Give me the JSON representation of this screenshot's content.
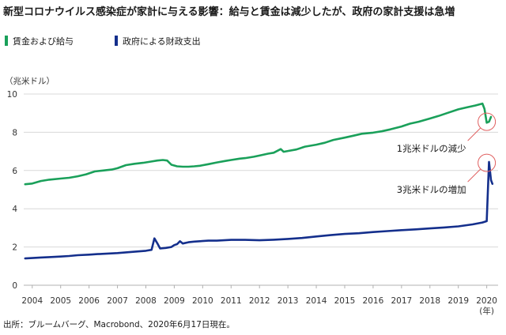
{
  "title": "新型コロナウイルス感染症が家計に与える影響：給与と賃金は減少したが、政府の家計支援は急増",
  "source": "出所：ブルームバーグ、Macrobond、2020年6月17日現在。",
  "chart_data": {
    "type": "line",
    "ylabel": "（兆米ドル）",
    "xlabel_suffix": "(年)",
    "ylim": [
      0,
      10
    ],
    "yticks": [
      0,
      2,
      4,
      6,
      8,
      10
    ],
    "xlim": [
      2003.7,
      2020.4
    ],
    "xticks": [
      "2004",
      "2005",
      "2006",
      "2007",
      "2008",
      "2009",
      "2010",
      "2011",
      "2012",
      "2013",
      "2014",
      "2015",
      "2016",
      "2017",
      "2018",
      "2019",
      "2020"
    ],
    "grid": true,
    "series": [
      {
        "name": "賃金および給与",
        "color": "#1aa05a",
        "x": [
          2003.75,
          2004.0,
          2004.3,
          2004.6,
          2005.0,
          2005.3,
          2005.6,
          2005.9,
          2006.2,
          2006.5,
          2006.8,
          2007.0,
          2007.3,
          2007.6,
          2007.9,
          2008.2,
          2008.4,
          2008.6,
          2008.75,
          2008.9,
          2009.1,
          2009.3,
          2009.5,
          2009.7,
          2009.9,
          2010.2,
          2010.5,
          2010.8,
          2011.0,
          2011.3,
          2011.5,
          2011.8,
          2012.0,
          2012.3,
          2012.5,
          2012.75,
          2012.85,
          2013.0,
          2013.3,
          2013.6,
          2014.0,
          2014.3,
          2014.6,
          2015.0,
          2015.3,
          2015.6,
          2016.0,
          2016.3,
          2016.6,
          2017.0,
          2017.3,
          2017.6,
          2018.0,
          2018.3,
          2018.6,
          2019.0,
          2019.3,
          2019.6,
          2019.85,
          2019.92,
          2020.0,
          2020.08,
          2020.15
        ],
        "values": [
          5.28,
          5.32,
          5.45,
          5.52,
          5.58,
          5.62,
          5.7,
          5.8,
          5.95,
          6.0,
          6.05,
          6.12,
          6.28,
          6.35,
          6.4,
          6.47,
          6.52,
          6.55,
          6.52,
          6.3,
          6.22,
          6.2,
          6.2,
          6.22,
          6.25,
          6.33,
          6.42,
          6.5,
          6.55,
          6.62,
          6.65,
          6.72,
          6.78,
          6.88,
          6.93,
          7.12,
          6.98,
          7.02,
          7.1,
          7.25,
          7.35,
          7.45,
          7.6,
          7.72,
          7.82,
          7.92,
          7.98,
          8.05,
          8.15,
          8.3,
          8.45,
          8.55,
          8.72,
          8.85,
          9.0,
          9.2,
          9.3,
          9.4,
          9.5,
          9.22,
          8.5,
          8.55,
          8.8
        ]
      },
      {
        "name": "政府による財政支出",
        "color": "#142f8c",
        "x": [
          2003.75,
          2004.0,
          2004.3,
          2004.6,
          2005.0,
          2005.3,
          2005.6,
          2006.0,
          2006.3,
          2006.6,
          2007.0,
          2007.3,
          2007.6,
          2008.0,
          2008.2,
          2008.3,
          2008.4,
          2008.5,
          2008.7,
          2008.9,
          2009.0,
          2009.1,
          2009.2,
          2009.3,
          2009.5,
          2009.7,
          2009.9,
          2010.2,
          2010.5,
          2011.0,
          2011.5,
          2012.0,
          2012.5,
          2013.0,
          2013.5,
          2014.0,
          2014.5,
          2015.0,
          2015.5,
          2016.0,
          2016.5,
          2017.0,
          2017.5,
          2018.0,
          2018.5,
          2019.0,
          2019.5,
          2019.85,
          2020.0,
          2020.08,
          2020.15,
          2020.2
        ],
        "values": [
          1.4,
          1.42,
          1.45,
          1.47,
          1.5,
          1.53,
          1.57,
          1.6,
          1.63,
          1.65,
          1.68,
          1.72,
          1.75,
          1.8,
          1.85,
          2.45,
          2.2,
          1.92,
          1.95,
          2.0,
          2.1,
          2.15,
          2.3,
          2.18,
          2.25,
          2.28,
          2.3,
          2.33,
          2.33,
          2.37,
          2.37,
          2.35,
          2.38,
          2.42,
          2.47,
          2.55,
          2.62,
          2.68,
          2.72,
          2.78,
          2.83,
          2.88,
          2.92,
          2.97,
          3.02,
          3.08,
          3.18,
          3.28,
          3.35,
          6.45,
          5.5,
          5.3
        ]
      }
    ],
    "annotations": [
      {
        "text": "1兆米ドルの減少",
        "x": 2020.0,
        "y": 8.55,
        "circle_color": "#e06060"
      },
      {
        "text": "3兆米ドルの増加",
        "x": 2020.0,
        "y": 6.4,
        "circle_color": "#e06060"
      }
    ]
  }
}
